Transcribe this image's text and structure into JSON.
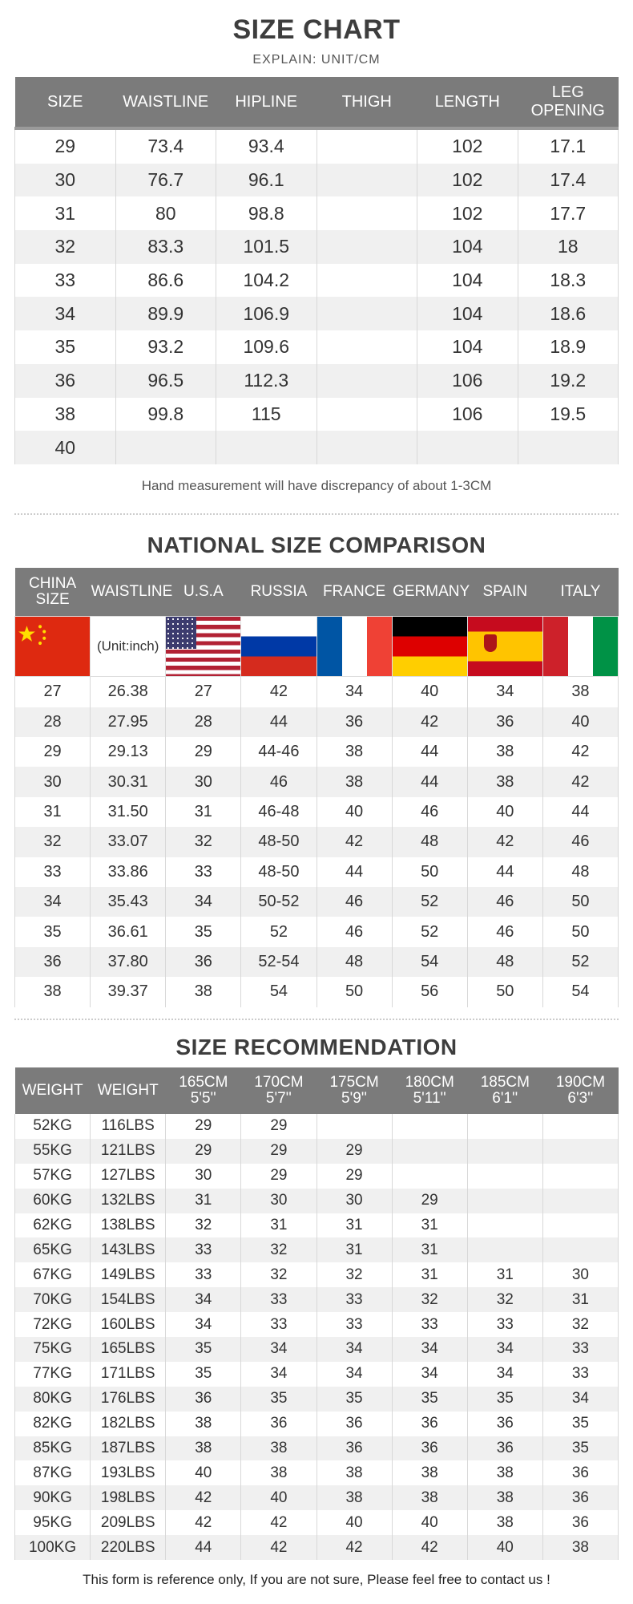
{
  "size_chart": {
    "title": "SIZE CHART",
    "subtitle": "EXPLAIN: UNIT/CM",
    "headers": [
      "SIZE",
      "WAISTLINE",
      "HIPLINE",
      "THIGH",
      "LENGTH",
      "LEG OPENING"
    ],
    "rows": [
      [
        "29",
        "73.4",
        "93.4",
        "",
        "102",
        "17.1"
      ],
      [
        "30",
        "76.7",
        "96.1",
        "",
        "102",
        "17.4"
      ],
      [
        "31",
        "80",
        "98.8",
        "",
        "102",
        "17.7"
      ],
      [
        "32",
        "83.3",
        "101.5",
        "",
        "104",
        "18"
      ],
      [
        "33",
        "86.6",
        "104.2",
        "",
        "104",
        "18.3"
      ],
      [
        "34",
        "89.9",
        "106.9",
        "",
        "104",
        "18.6"
      ],
      [
        "35",
        "93.2",
        "109.6",
        "",
        "104",
        "18.9"
      ],
      [
        "36",
        "96.5",
        "112.3",
        "",
        "106",
        "19.2"
      ],
      [
        "38",
        "99.8",
        "115",
        "",
        "106",
        "19.5"
      ],
      [
        "40",
        "",
        "",
        "",
        "",
        ""
      ]
    ],
    "note": "Hand measurement will have discrepancy of about 1-3CM"
  },
  "national": {
    "title": "NATIONAL SIZE COMPARISON",
    "headers": [
      "CHINA SIZE",
      "WAISTLINE",
      "U.S.A",
      "RUSSIA",
      "FRANCE",
      "GERMANY",
      "SPAIN",
      "ITALY"
    ],
    "unit_label": "(Unit:inch)",
    "rows": [
      [
        "27",
        "26.38",
        "27",
        "42",
        "34",
        "40",
        "34",
        "38"
      ],
      [
        "28",
        "27.95",
        "28",
        "44",
        "36",
        "42",
        "36",
        "40"
      ],
      [
        "29",
        "29.13",
        "29",
        "44-46",
        "38",
        "44",
        "38",
        "42"
      ],
      [
        "30",
        "30.31",
        "30",
        "46",
        "38",
        "44",
        "38",
        "42"
      ],
      [
        "31",
        "31.50",
        "31",
        "46-48",
        "40",
        "46",
        "40",
        "44"
      ],
      [
        "32",
        "33.07",
        "32",
        "48-50",
        "42",
        "48",
        "42",
        "46"
      ],
      [
        "33",
        "33.86",
        "33",
        "48-50",
        "44",
        "50",
        "44",
        "48"
      ],
      [
        "34",
        "35.43",
        "34",
        "50-52",
        "46",
        "52",
        "46",
        "50"
      ],
      [
        "35",
        "36.61",
        "35",
        "52",
        "46",
        "52",
        "46",
        "50"
      ],
      [
        "36",
        "37.80",
        "36",
        "52-54",
        "48",
        "54",
        "48",
        "52"
      ],
      [
        "38",
        "39.37",
        "38",
        "54",
        "50",
        "56",
        "50",
        "54"
      ]
    ]
  },
  "recommendation": {
    "title": "SIZE RECOMMENDATION",
    "headers": [
      [
        "WEIGHT",
        ""
      ],
      [
        "WEIGHT",
        ""
      ],
      [
        "165CM",
        "5'5''"
      ],
      [
        "170CM",
        "5'7''"
      ],
      [
        "175CM",
        "5'9''"
      ],
      [
        "180CM",
        "5'11''"
      ],
      [
        "185CM",
        "6'1''"
      ],
      [
        "190CM",
        "6'3''"
      ]
    ],
    "rows": [
      [
        "52KG",
        "116LBS",
        "29",
        "29",
        "",
        "",
        "",
        ""
      ],
      [
        "55KG",
        "121LBS",
        "29",
        "29",
        "29",
        "",
        "",
        ""
      ],
      [
        "57KG",
        "127LBS",
        "30",
        "29",
        "29",
        "",
        "",
        ""
      ],
      [
        "60KG",
        "132LBS",
        "31",
        "30",
        "30",
        "29",
        "",
        ""
      ],
      [
        "62KG",
        "138LBS",
        "32",
        "31",
        "31",
        "31",
        "",
        ""
      ],
      [
        "65KG",
        "143LBS",
        "33",
        "32",
        "31",
        "31",
        "",
        ""
      ],
      [
        "67KG",
        "149LBS",
        "33",
        "32",
        "32",
        "31",
        "31",
        "30"
      ],
      [
        "70KG",
        "154LBS",
        "34",
        "33",
        "33",
        "32",
        "32",
        "31"
      ],
      [
        "72KG",
        "160LBS",
        "34",
        "33",
        "33",
        "33",
        "33",
        "32"
      ],
      [
        "75KG",
        "165LBS",
        "35",
        "34",
        "34",
        "34",
        "34",
        "33"
      ],
      [
        "77KG",
        "171LBS",
        "35",
        "34",
        "34",
        "34",
        "34",
        "33"
      ],
      [
        "80KG",
        "176LBS",
        "36",
        "35",
        "35",
        "35",
        "35",
        "34"
      ],
      [
        "82KG",
        "182LBS",
        "38",
        "36",
        "36",
        "36",
        "36",
        "35"
      ],
      [
        "85KG",
        "187LBS",
        "38",
        "38",
        "36",
        "36",
        "36",
        "35"
      ],
      [
        "87KG",
        "193LBS",
        "40",
        "38",
        "38",
        "38",
        "38",
        "36"
      ],
      [
        "90KG",
        "198LBS",
        "42",
        "40",
        "38",
        "38",
        "38",
        "36"
      ],
      [
        "95KG",
        "209LBS",
        "42",
        "42",
        "40",
        "40",
        "38",
        "36"
      ],
      [
        "100KG",
        "220LBS",
        "44",
        "42",
        "42",
        "42",
        "40",
        "38"
      ]
    ],
    "footer": "This form is reference only, If you are not sure, Please feel free to contact us !"
  },
  "flags": [
    "china-flag",
    "usa-flag",
    "russia-flag",
    "france-flag",
    "germany-flag",
    "spain-flag",
    "italy-flag"
  ],
  "colors": {
    "header_bg": "#7b7b7b",
    "stripe": "#f0f0f0"
  }
}
